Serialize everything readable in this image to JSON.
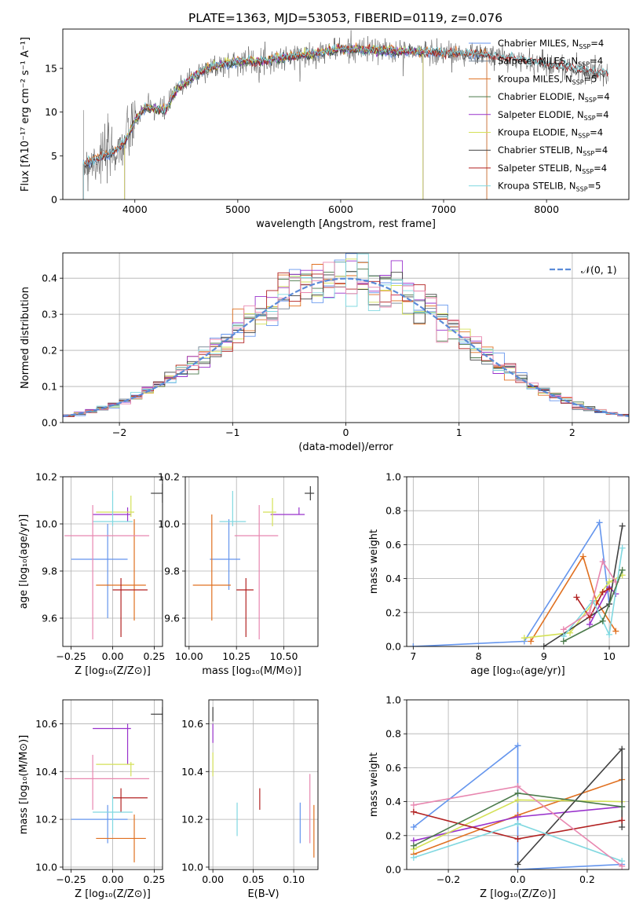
{
  "title": "PLATE=1363, MJD=53053, FIBERID=0119, z=0.076",
  "colors": {
    "Chabrier MILES": "#6495ed",
    "Salpeter MILES": "#708090",
    "Kroupa MILES": "#e07020",
    "Chabrier ELODIE": "#4b7a4b",
    "Salpeter ELODIE": "#9932cc",
    "Kroupa ELODIE": "#d4e157",
    "Chabrier STELIB": "#404040",
    "Salpeter STELIB": "#b22222",
    "Kroupa STELIB": "#80d8e0",
    "Pink": "#e887b0",
    "Lime": "#c8e070",
    "Normal": "#5b8bd8",
    "Grid": "#b0b0b0"
  },
  "chart_data": [
    {
      "id": "spectrum",
      "type": "line",
      "title": "PLATE=1363, MJD=53053, FIBERID=0119, z=0.076",
      "xlabel": "wavelength [Angstrom, rest frame]",
      "ylabel": "Flux [fλ10⁻¹⁷ erg cm⁻² s⁻¹ A⁻¹]",
      "xlim": [
        3300,
        8800
      ],
      "ylim": [
        0,
        19.5
      ],
      "xticks": [
        "4000",
        "5000",
        "6000",
        "7000",
        "8000"
      ],
      "yticks": [
        "0",
        "5",
        "10",
        "15"
      ],
      "legend": [
        "Chabrier MILES, N_SSP=4",
        "Salpeter MILES, N_SSP=4",
        "Kroupa MILES, N_SSP=5",
        "Chabrier ELODIE, N_SSP=4",
        "Salpeter ELODIE, N_SSP=4",
        "Kroupa ELODIE, N_SSP=4",
        "Chabrier STELIB, N_SSP=4",
        "Salpeter STELIB, N_SSP=4",
        "Kroupa STELIB, N_SSP=5"
      ],
      "legend_placement": "right",
      "continuum": [
        [
          3500,
          4.0
        ],
        [
          3600,
          4.5
        ],
        [
          3700,
          5.0
        ],
        [
          3800,
          5.5
        ],
        [
          3900,
          6.5
        ],
        [
          4000,
          9.0
        ],
        [
          4100,
          10.5
        ],
        [
          4300,
          10.2
        ],
        [
          4400,
          12.5
        ],
        [
          4500,
          13.5
        ],
        [
          4700,
          15.0
        ],
        [
          5000,
          15.8
        ],
        [
          5200,
          15.8
        ],
        [
          5500,
          16.3
        ],
        [
          6000,
          17.2
        ],
        [
          6500,
          17.0
        ],
        [
          7000,
          16.8
        ],
        [
          7400,
          16.6
        ],
        [
          8000,
          15.5
        ],
        [
          8500,
          14.5
        ]
      ]
    },
    {
      "id": "residuals",
      "type": "step",
      "xlabel": "(data-model)/error",
      "ylabel": "Normed distribution",
      "xlim": [
        -2.5,
        2.5
      ],
      "ylim": [
        0,
        0.47
      ],
      "xticks": [
        "−2",
        "−1",
        "0",
        "1",
        "2"
      ],
      "yticks": [
        "0.0",
        "0.1",
        "0.2",
        "0.3",
        "0.4"
      ],
      "legend": "𝒩(0, 1)",
      "legend_placement": "top-right",
      "bin_width": 0.1,
      "bin_start": -2.5
    },
    {
      "id": "age_vs_Z",
      "type": "errorbar",
      "xlabel": "Z [log₁₀(Z/Z⊙)]",
      "ylabel": "age  [log₁₀(age/yr)]",
      "xlim": [
        -0.3,
        0.3
      ],
      "ylim": [
        9.48,
        10.2
      ],
      "xticks": [
        "−0.25",
        "0.00",
        "0.25"
      ],
      "yticks": [
        "9.6",
        "9.8",
        "10.0",
        "10.2"
      ],
      "points": [
        {
          "series": "Chabrier MILES",
          "x": -0.03,
          "xerr": [
            0.22,
            0.12
          ],
          "y": 9.85,
          "yerr": [
            0.25,
            0.15
          ]
        },
        {
          "series": "Kroupa MILES",
          "x": 0.13,
          "xerr": [
            0.23,
            0.07
          ],
          "y": 9.74,
          "yerr": [
            0.15,
            0.28
          ]
        },
        {
          "series": "Salpeter ELODIE",
          "x": 0.09,
          "xerr": [
            0.21,
            0.02
          ],
          "y": 10.04,
          "yerr": [
            0.03,
            0.03
          ]
        },
        {
          "series": "Kroupa ELODIE",
          "x": 0.11,
          "xerr": [
            0.21,
            0.02
          ],
          "y": 10.05,
          "yerr": [
            0.02,
            0.07
          ]
        },
        {
          "series": "Chabrier STELIB",
          "x": 0.3,
          "xerr": [
            0.07,
            0.0
          ],
          "y": 10.13,
          "yerr": [
            0.04,
            0.04
          ]
        },
        {
          "series": "Salpeter STELIB",
          "x": 0.05,
          "xerr": [
            0.05,
            0.16
          ],
          "y": 9.72,
          "yerr": [
            0.2,
            0.05
          ]
        },
        {
          "series": "Kroupa STELIB",
          "x": 0.0,
          "xerr": [
            0.12,
            0.12
          ],
          "y": 10.01,
          "yerr": [
            0.02,
            0.13
          ]
        },
        {
          "series": "Pink",
          "x": -0.12,
          "xerr": [
            0.17,
            0.34
          ],
          "y": 9.95,
          "yerr": [
            0.44,
            0.13
          ]
        }
      ]
    },
    {
      "id": "age_vs_mass",
      "type": "errorbar",
      "xlabel": "mass [log₁₀(M/M⊙)]",
      "ylabel": "",
      "xlim": [
        9.98,
        10.68
      ],
      "ylim": [
        9.48,
        10.2
      ],
      "xticks": [
        "10.00",
        "10.25",
        "10.50"
      ],
      "yticks": [
        "9.6",
        "9.8",
        "10.0",
        "10.2"
      ],
      "points": [
        {
          "series": "Chabrier MILES",
          "x": 10.21,
          "xerr": [
            0.1,
            0.06
          ],
          "y": 9.85,
          "yerr": [
            0.13,
            0.17
          ]
        },
        {
          "series": "Kroupa MILES",
          "x": 10.12,
          "xerr": [
            0.1,
            0.1
          ],
          "y": 9.74,
          "yerr": [
            0.15,
            0.3
          ]
        },
        {
          "series": "Salpeter ELODIE",
          "x": 10.58,
          "xerr": [
            0.15,
            0.03
          ],
          "y": 10.04,
          "yerr": [
            0.0,
            0.03
          ]
        },
        {
          "series": "Kroupa ELODIE",
          "x": 10.44,
          "xerr": [
            0.05,
            0.02
          ],
          "y": 10.05,
          "yerr": [
            0.06,
            0.06
          ]
        },
        {
          "series": "Chabrier STELIB",
          "x": 10.64,
          "xerr": [
            0.03,
            0.02
          ],
          "y": 10.13,
          "yerr": [
            0.03,
            0.03
          ]
        },
        {
          "series": "Salpeter STELIB",
          "x": 10.3,
          "xerr": [
            0.05,
            0.04
          ],
          "y": 9.72,
          "yerr": [
            0.2,
            0.05
          ]
        },
        {
          "series": "Kroupa STELIB",
          "x": 10.23,
          "xerr": [
            0.07,
            0.07
          ],
          "y": 10.01,
          "yerr": [
            0.02,
            0.13
          ]
        },
        {
          "series": "Pink",
          "x": 10.37,
          "xerr": [
            0.13,
            0.1
          ],
          "y": 9.95,
          "yerr": [
            0.44,
            0.13
          ]
        }
      ]
    },
    {
      "id": "weights_vs_age",
      "type": "line",
      "xlabel": "age  [log₁₀(age/yr)]",
      "ylabel": "mass weight",
      "xlim": [
        6.9,
        10.3
      ],
      "ylim": [
        0,
        1.0
      ],
      "xticks": [
        "7",
        "8",
        "9",
        "10"
      ],
      "yticks": [
        "0.0",
        "0.2",
        "0.4",
        "0.6",
        "0.8",
        "1.0"
      ],
      "series": [
        {
          "series": "Chabrier MILES",
          "points": [
            [
              7.0,
              0.0
            ],
            [
              8.7,
              0.03
            ],
            [
              9.85,
              0.73
            ],
            [
              10.0,
              0.25
            ]
          ]
        },
        {
          "series": "Kroupa MILES",
          "points": [
            [
              8.8,
              0.03
            ],
            [
              9.6,
              0.53
            ],
            [
              9.8,
              0.27
            ],
            [
              10.1,
              0.09
            ]
          ]
        },
        {
          "series": "Salpeter ELODIE",
          "points": [
            [
              9.7,
              0.13
            ],
            [
              10.0,
              0.35
            ],
            [
              10.1,
              0.31
            ]
          ]
        },
        {
          "series": "Kroupa ELODIE",
          "points": [
            [
              8.7,
              0.05
            ],
            [
              9.4,
              0.08
            ],
            [
              10.0,
              0.38
            ],
            [
              10.2,
              0.42
            ]
          ]
        },
        {
          "series": "Chabrier STELIB",
          "points": [
            [
              9.0,
              0.0
            ],
            [
              10.0,
              0.25
            ],
            [
              10.2,
              0.71
            ]
          ]
        },
        {
          "series": "Salpeter STELIB",
          "points": [
            [
              9.5,
              0.29
            ],
            [
              9.7,
              0.17
            ],
            [
              9.9,
              0.32
            ],
            [
              10.0,
              0.34
            ]
          ]
        },
        {
          "series": "Kroupa STELIB",
          "points": [
            [
              9.3,
              0.06
            ],
            [
              9.75,
              0.27
            ],
            [
              10.0,
              0.07
            ],
            [
              10.2,
              0.58
            ]
          ]
        },
        {
          "series": "Pink",
          "points": [
            [
              9.3,
              0.1
            ],
            [
              9.7,
              0.2
            ],
            [
              9.9,
              0.5
            ],
            [
              10.1,
              0.38
            ]
          ]
        },
        {
          "series": "Chabrier ELODIE",
          "points": [
            [
              9.3,
              0.03
            ],
            [
              9.9,
              0.15
            ],
            [
              10.2,
              0.45
            ]
          ]
        }
      ]
    },
    {
      "id": "mass_vs_Z",
      "type": "errorbar",
      "xlabel": "Z [log₁₀(Z/Z⊙)]",
      "ylabel": "mass [log₁₀(M/M⊙)]",
      "xlim": [
        -0.3,
        0.3
      ],
      "ylim": [
        9.99,
        10.7
      ],
      "xticks": [
        "−0.25",
        "0.00",
        "0.25"
      ],
      "yticks": [
        "10.0",
        "10.2",
        "10.4",
        "10.6"
      ],
      "points": [
        {
          "series": "Chabrier MILES",
          "x": -0.03,
          "xerr": [
            0.22,
            0.12
          ],
          "y": 10.2,
          "yerr": [
            0.1,
            0.06
          ]
        },
        {
          "series": "Kroupa MILES",
          "x": 0.13,
          "xerr": [
            0.23,
            0.07
          ],
          "y": 10.12,
          "yerr": [
            0.1,
            0.1
          ]
        },
        {
          "series": "Salpeter ELODIE",
          "x": 0.09,
          "xerr": [
            0.21,
            0.02
          ],
          "y": 10.58,
          "yerr": [
            0.15,
            0.02
          ]
        },
        {
          "series": "Kroupa ELODIE",
          "x": 0.11,
          "xerr": [
            0.21,
            0.02
          ],
          "y": 10.43,
          "yerr": [
            0.05,
            0.01
          ]
        },
        {
          "series": "Chabrier STELIB",
          "x": 0.3,
          "xerr": [
            0.07,
            0.0
          ],
          "y": 10.64,
          "yerr": [
            0.03,
            0.03
          ]
        },
        {
          "series": "Salpeter STELIB",
          "x": 0.05,
          "xerr": [
            0.05,
            0.16
          ],
          "y": 10.29,
          "yerr": [
            0.06,
            0.04
          ]
        },
        {
          "series": "Kroupa STELIB",
          "x": 0.0,
          "xerr": [
            0.12,
            0.12
          ],
          "y": 10.23,
          "yerr": [
            0.09,
            0.07
          ]
        },
        {
          "series": "Pink",
          "x": -0.12,
          "xerr": [
            0.17,
            0.34
          ],
          "y": 10.37,
          "yerr": [
            0.13,
            0.1
          ]
        }
      ]
    },
    {
      "id": "mass_vs_ebv",
      "type": "errorbar",
      "xlabel": "E(B-V)",
      "ylabel": "",
      "xlim": [
        -0.005,
        0.13
      ],
      "ylim": [
        9.99,
        10.7
      ],
      "xticks": [
        "0.00",
        "0.05",
        "0.10"
      ],
      "yticks": [
        "10.0",
        "10.2",
        "10.4",
        "10.6"
      ],
      "points": [
        {
          "series": "Chabrier MILES",
          "x": 0.108,
          "y": 10.2,
          "yerr": [
            0.1,
            0.07
          ]
        },
        {
          "series": "Kroupa MILES",
          "x": 0.125,
          "y": 10.12,
          "yerr": [
            0.08,
            0.14
          ]
        },
        {
          "series": "Salpeter ELODIE",
          "x": 0.0,
          "y": 10.58,
          "yerr": [
            0.06,
            0.02
          ]
        },
        {
          "series": "Kroupa ELODIE",
          "x": 0.0,
          "y": 10.43,
          "yerr": [
            0.05,
            0.05
          ]
        },
        {
          "series": "Chabrier STELIB",
          "x": 0.0,
          "y": 10.64,
          "yerr": [
            0.03,
            0.03
          ]
        },
        {
          "series": "Salpeter STELIB",
          "x": 0.058,
          "y": 10.29,
          "yerr": [
            0.05,
            0.04
          ]
        },
        {
          "series": "Kroupa STELIB",
          "x": 0.03,
          "y": 10.2,
          "yerr": [
            0.07,
            0.07
          ]
        },
        {
          "series": "Pink",
          "x": 0.12,
          "y": 10.2,
          "yerr": [
            0.1,
            0.19
          ]
        }
      ]
    },
    {
      "id": "weights_vs_Z",
      "type": "line",
      "xlabel": "Z [log₁₀(Z/Z⊙)]",
      "ylabel": "mass weight",
      "xlim": [
        -0.32,
        0.32
      ],
      "ylim": [
        0,
        1.0
      ],
      "xticks": [
        "−0.2",
        "0.0",
        "0.2"
      ],
      "yticks": [
        "0.0",
        "0.2",
        "0.4",
        "0.6",
        "0.8",
        "1.0"
      ],
      "series": [
        {
          "series": "Chabrier MILES",
          "points": [
            [
              -0.3,
              0.25
            ],
            [
              0.0,
              0.73
            ],
            [
              0.0,
              0.0
            ],
            [
              0.3,
              0.03
            ]
          ]
        },
        {
          "series": "Kroupa MILES",
          "points": [
            [
              -0.3,
              0.09
            ],
            [
              0.0,
              0.32
            ],
            [
              0.3,
              0.53
            ]
          ]
        },
        {
          "series": "Salpeter ELODIE",
          "points": [
            [
              -0.3,
              0.17
            ],
            [
              0.0,
              0.31
            ],
            [
              0.3,
              0.37
            ]
          ]
        },
        {
          "series": "Kroupa ELODIE",
          "points": [
            [
              -0.3,
              0.12
            ],
            [
              0.0,
              0.41
            ],
            [
              0.3,
              0.4
            ]
          ]
        },
        {
          "series": "Chabrier STELIB",
          "points": [
            [
              0.0,
              0.03
            ],
            [
              0.3,
              0.71
            ],
            [
              0.3,
              0.25
            ]
          ]
        },
        {
          "series": "Salpeter STELIB",
          "points": [
            [
              -0.3,
              0.34
            ],
            [
              0.0,
              0.18
            ],
            [
              0.3,
              0.29
            ]
          ]
        },
        {
          "series": "Kroupa STELIB",
          "points": [
            [
              -0.3,
              0.07
            ],
            [
              0.0,
              0.27
            ],
            [
              0.3,
              0.05
            ]
          ]
        },
        {
          "series": "Pink",
          "points": [
            [
              -0.3,
              0.38
            ],
            [
              0.0,
              0.49
            ],
            [
              0.3,
              0.02
            ]
          ]
        },
        {
          "series": "Chabrier ELODIE",
          "points": [
            [
              -0.3,
              0.14
            ],
            [
              0.0,
              0.45
            ],
            [
              0.3,
              0.37
            ]
          ]
        }
      ]
    }
  ]
}
